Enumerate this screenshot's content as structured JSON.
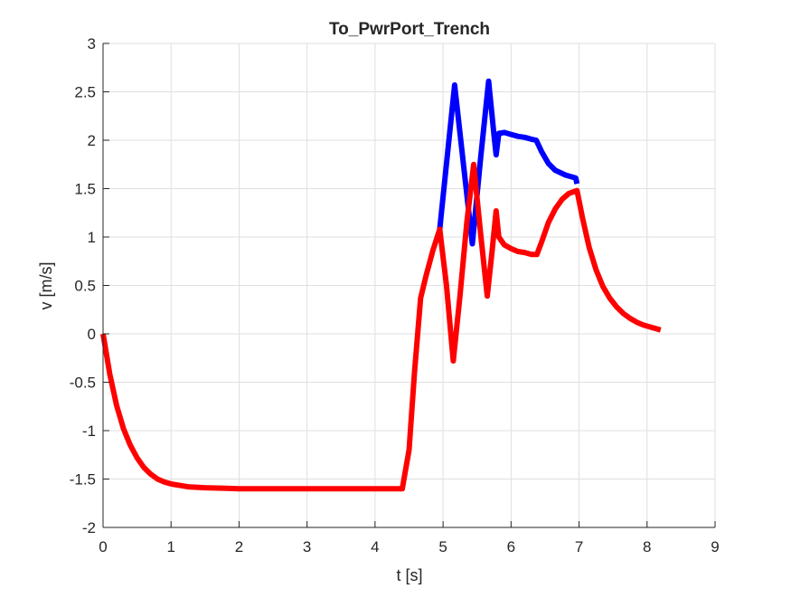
{
  "chart_data": {
    "type": "line",
    "title": "To_PwrPort_Trench",
    "xlabel": "t [s]",
    "ylabel": "v [m/s]",
    "xlim": [
      0,
      9
    ],
    "ylim": [
      -2,
      3
    ],
    "xticks": [
      0,
      1,
      2,
      3,
      4,
      5,
      6,
      7,
      8,
      9
    ],
    "yticks": [
      -2,
      -1.5,
      -1,
      -0.5,
      0,
      0.5,
      1,
      1.5,
      2,
      2.5,
      3
    ],
    "xtick_labels": [
      "0",
      "1",
      "2",
      "3",
      "4",
      "5",
      "6",
      "7",
      "8",
      "9"
    ],
    "ytick_labels": [
      "-2",
      "-1.5",
      "-1",
      "-0.5",
      "0",
      "0.5",
      "1",
      "1.5",
      "2",
      "2.5",
      "3"
    ],
    "grid": true,
    "series": [
      {
        "color": "#0000ff",
        "points": [
          [
            4.95,
            1.08
          ],
          [
            5.17,
            2.57
          ],
          [
            5.3,
            1.75
          ],
          [
            5.43,
            0.93
          ],
          [
            5.55,
            1.8
          ],
          [
            5.67,
            2.61
          ],
          [
            5.75,
            2.05
          ],
          [
            5.78,
            1.85
          ],
          [
            5.82,
            2.07
          ],
          [
            5.9,
            2.08
          ],
          [
            6.0,
            2.06
          ],
          [
            6.1,
            2.04
          ],
          [
            6.2,
            2.03
          ],
          [
            6.3,
            2.01
          ],
          [
            6.37,
            2.0
          ],
          [
            6.45,
            1.88
          ],
          [
            6.55,
            1.76
          ],
          [
            6.65,
            1.69
          ],
          [
            6.8,
            1.64
          ],
          [
            6.95,
            1.61
          ],
          [
            6.97,
            1.55
          ]
        ]
      },
      {
        "color": "#ff0000",
        "points": [
          [
            0.0,
            0.0
          ],
          [
            0.1,
            -0.42
          ],
          [
            0.2,
            -0.74
          ],
          [
            0.3,
            -0.98
          ],
          [
            0.4,
            -1.15
          ],
          [
            0.5,
            -1.28
          ],
          [
            0.6,
            -1.38
          ],
          [
            0.7,
            -1.45
          ],
          [
            0.8,
            -1.5
          ],
          [
            0.9,
            -1.53
          ],
          [
            1.0,
            -1.55
          ],
          [
            1.25,
            -1.58
          ],
          [
            1.5,
            -1.59
          ],
          [
            2.0,
            -1.6
          ],
          [
            3.0,
            -1.6
          ],
          [
            4.0,
            -1.6
          ],
          [
            4.4,
            -1.6
          ],
          [
            4.5,
            -1.2
          ],
          [
            4.58,
            -0.4
          ],
          [
            4.67,
            0.37
          ],
          [
            4.75,
            0.6
          ],
          [
            4.85,
            0.86
          ],
          [
            4.95,
            1.08
          ],
          [
            5.05,
            0.5
          ],
          [
            5.15,
            -0.28
          ],
          [
            5.25,
            0.4
          ],
          [
            5.35,
            1.15
          ],
          [
            5.45,
            1.75
          ],
          [
            5.55,
            1.05
          ],
          [
            5.65,
            0.39
          ],
          [
            5.72,
            0.85
          ],
          [
            5.78,
            1.27
          ],
          [
            5.82,
            1.0
          ],
          [
            5.9,
            0.92
          ],
          [
            6.0,
            0.88
          ],
          [
            6.1,
            0.85
          ],
          [
            6.2,
            0.84
          ],
          [
            6.3,
            0.82
          ],
          [
            6.38,
            0.82
          ],
          [
            6.45,
            0.95
          ],
          [
            6.55,
            1.15
          ],
          [
            6.65,
            1.29
          ],
          [
            6.75,
            1.39
          ],
          [
            6.85,
            1.45
          ],
          [
            6.97,
            1.48
          ],
          [
            7.05,
            1.2
          ],
          [
            7.15,
            0.89
          ],
          [
            7.25,
            0.66
          ],
          [
            7.35,
            0.49
          ],
          [
            7.45,
            0.37
          ],
          [
            7.55,
            0.28
          ],
          [
            7.65,
            0.21
          ],
          [
            7.75,
            0.16
          ],
          [
            7.85,
            0.12
          ],
          [
            7.95,
            0.09
          ],
          [
            8.05,
            0.07
          ],
          [
            8.2,
            0.04
          ]
        ]
      }
    ]
  }
}
